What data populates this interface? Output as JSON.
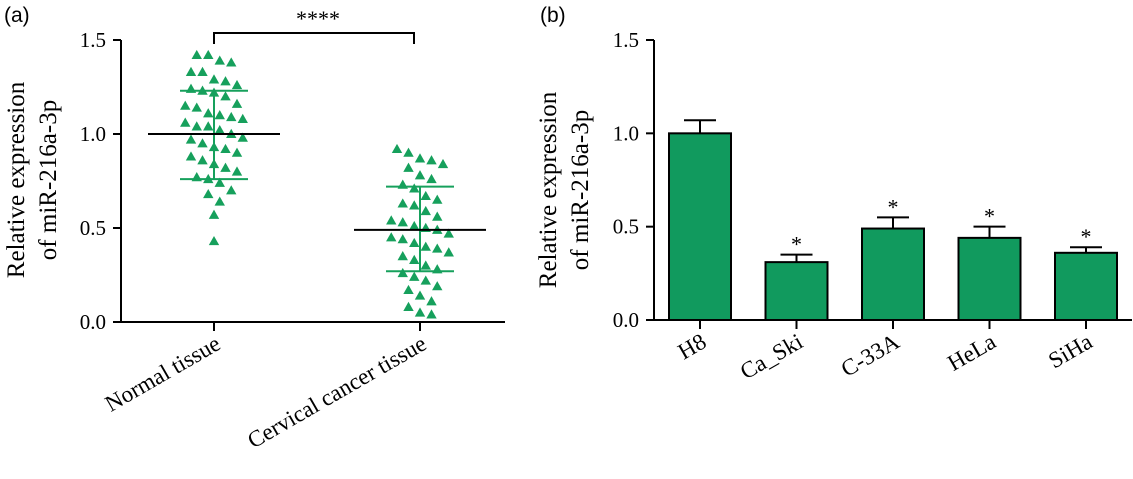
{
  "chart_data": [
    {
      "panel": "(a)",
      "type": "scatter",
      "ylabel_line1": "Relative expression",
      "ylabel_line2": "of miR-216a-3p",
      "ylim": [
        0,
        1.5
      ],
      "yticks": [
        "0.0",
        "0.5",
        "1.0",
        "1.5"
      ],
      "ytick_values": [
        0,
        0.5,
        1.0,
        1.5
      ],
      "categories": [
        "Normal tissue",
        "Cervical cancer tissue"
      ],
      "color": "#16a05c",
      "significance": "****",
      "groups": [
        {
          "name": "Normal tissue",
          "mean": 1.0,
          "sd_upper": 1.23,
          "sd_lower": 0.76,
          "points": [
            1.42,
            1.42,
            1.39,
            1.38,
            1.33,
            1.33,
            1.29,
            1.28,
            1.26,
            1.24,
            1.23,
            1.22,
            1.2,
            1.16,
            1.15,
            1.14,
            1.11,
            1.1,
            1.09,
            1.08,
            1.06,
            1.04,
            1.04,
            1.02,
            1.0,
            0.98,
            0.97,
            0.95,
            0.93,
            0.92,
            0.9,
            0.88,
            0.86,
            0.84,
            0.82,
            0.8,
            0.77,
            0.76,
            0.74,
            0.7,
            0.68,
            0.64,
            0.57,
            0.43
          ]
        },
        {
          "name": "Cervical cancer tissue",
          "mean": 0.49,
          "sd_upper": 0.72,
          "sd_lower": 0.27,
          "points": [
            0.92,
            0.9,
            0.87,
            0.86,
            0.84,
            0.82,
            0.78,
            0.76,
            0.73,
            0.71,
            0.67,
            0.65,
            0.63,
            0.62,
            0.59,
            0.56,
            0.54,
            0.53,
            0.51,
            0.5,
            0.49,
            0.47,
            0.45,
            0.44,
            0.42,
            0.4,
            0.39,
            0.37,
            0.35,
            0.33,
            0.3,
            0.28,
            0.26,
            0.24,
            0.22,
            0.19,
            0.17,
            0.14,
            0.11,
            0.08,
            0.05,
            0.04
          ]
        }
      ]
    },
    {
      "panel": "(b)",
      "type": "bar",
      "ylabel_line1": "Relative expression",
      "ylabel_line2": "of miR-216a-3p",
      "ylim": [
        0,
        1.5
      ],
      "yticks": [
        "0.0",
        "0.5",
        "1.0",
        "1.5"
      ],
      "ytick_values": [
        0,
        0.5,
        1.0,
        1.5
      ],
      "categories": [
        "H8",
        "Ca_Ski",
        "C-33A",
        "HeLa",
        "SiHa"
      ],
      "values": [
        1.0,
        0.31,
        0.49,
        0.44,
        0.36
      ],
      "errors": [
        0.07,
        0.04,
        0.06,
        0.06,
        0.03
      ],
      "significance": [
        "",
        "*",
        "*",
        "*",
        "*"
      ],
      "color": "#119a5e"
    }
  ]
}
